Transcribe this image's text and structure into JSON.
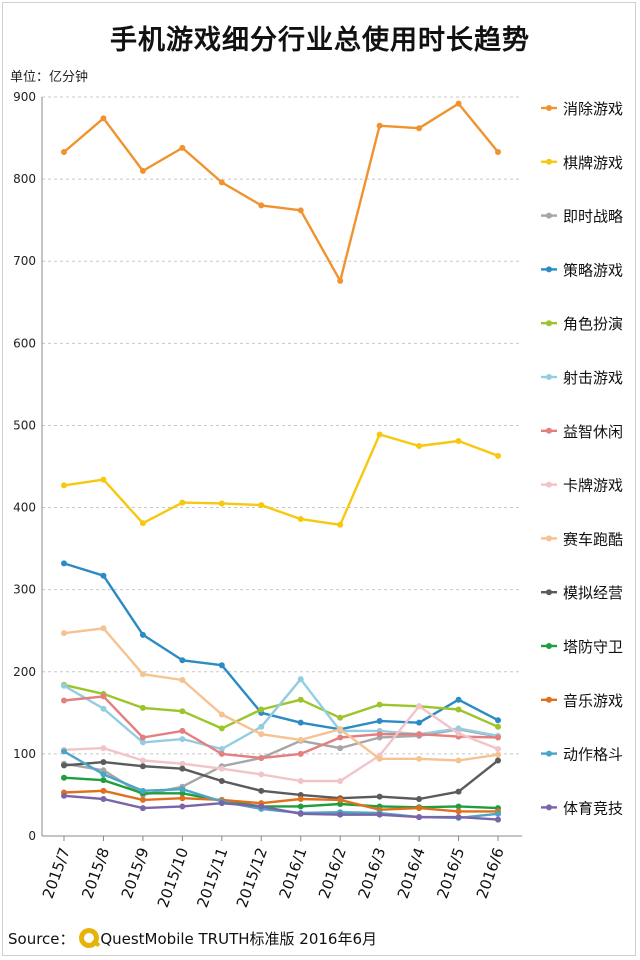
{
  "title": "手机游戏细分行业总使用时长趋势",
  "unit_label": "单位：亿分钟",
  "source": {
    "prefix": "Source：",
    "brand": "QuestMobile TRUTH标准版 2016年6月",
    "logo": "questmobile-q-logo"
  },
  "chart_data": {
    "type": "line",
    "title": "手机游戏细分行业总使用时长趋势",
    "ylabel": "单位：亿分钟",
    "xlabel": "",
    "ylim": [
      0,
      900
    ],
    "yticks": [
      0,
      100,
      200,
      300,
      400,
      500,
      600,
      700,
      800,
      900
    ],
    "grid": "horizontal-dashed",
    "legend_position": "right",
    "categories": [
      "2015/7",
      "2015/8",
      "2015/9",
      "2015/10",
      "2015/11",
      "2015/12",
      "2016/1",
      "2016/2",
      "2016/3",
      "2016/4",
      "2016/5",
      "2016/6"
    ],
    "series": [
      {
        "name": "消除游戏",
        "color": "#F0932E",
        "values": [
          833,
          874,
          810,
          838,
          796,
          768,
          762,
          676,
          865,
          862,
          892,
          833
        ]
      },
      {
        "name": "棋牌游戏",
        "color": "#F7C80E",
        "values": [
          427,
          434,
          381,
          406,
          405,
          403,
          386,
          379,
          489,
          475,
          481,
          463
        ]
      },
      {
        "name": "即时战略",
        "color": "#A6A6A6",
        "values": [
          88,
          80,
          50,
          60,
          85,
          95,
          116,
          107,
          120,
          122,
          130,
          121
        ]
      },
      {
        "name": "策略游戏",
        "color": "#2C8BC4",
        "values": [
          332,
          317,
          245,
          214,
          208,
          150,
          138,
          130,
          140,
          138,
          166,
          141
        ]
      },
      {
        "name": "角色扮演",
        "color": "#9CC52A",
        "values": [
          184,
          173,
          156,
          152,
          131,
          154,
          166,
          144,
          160,
          158,
          154,
          133
        ]
      },
      {
        "name": "射击游戏",
        "color": "#94CDE2",
        "values": [
          183,
          155,
          114,
          118,
          106,
          133,
          191,
          128,
          128,
          124,
          131,
          122
        ]
      },
      {
        "name": "益智休闲",
        "color": "#E47F7F",
        "values": [
          165,
          170,
          120,
          128,
          100,
          95,
          100,
          120,
          124,
          124,
          121,
          120
        ]
      },
      {
        "name": "卡牌游戏",
        "color": "#F2C4C8",
        "values": [
          105,
          107,
          92,
          88,
          82,
          75,
          67,
          67,
          98,
          158,
          125,
          106
        ]
      },
      {
        "name": "赛车跑酷",
        "color": "#F5C291",
        "values": [
          247,
          253,
          197,
          190,
          148,
          124,
          117,
          130,
          94,
          94,
          92,
          99
        ]
      },
      {
        "name": "模拟经营",
        "color": "#5B5B5B",
        "values": [
          86,
          90,
          85,
          82,
          67,
          55,
          50,
          46,
          48,
          45,
          54,
          92
        ]
      },
      {
        "name": "塔防守卫",
        "color": "#1E9E3E",
        "values": [
          71,
          68,
          52,
          52,
          43,
          36,
          36,
          39,
          36,
          35,
          36,
          34
        ]
      },
      {
        "name": "音乐游戏",
        "color": "#E0701E",
        "values": [
          53,
          55,
          44,
          46,
          44,
          40,
          45,
          44,
          32,
          34,
          30,
          30
        ]
      },
      {
        "name": "动作格斗",
        "color": "#4AA6C7",
        "values": [
          103,
          75,
          55,
          57,
          42,
          33,
          28,
          29,
          28,
          23,
          22,
          27
        ]
      },
      {
        "name": "体育竞技",
        "color": "#7B64A8",
        "values": [
          49,
          45,
          34,
          36,
          40,
          36,
          27,
          26,
          26,
          23,
          23,
          20
        ]
      }
    ]
  }
}
